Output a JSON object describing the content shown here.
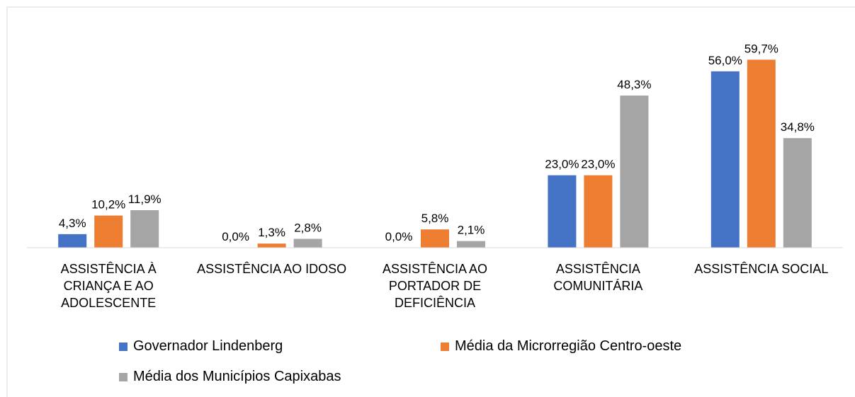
{
  "chart_data": {
    "type": "bar",
    "categories": [
      "ASSISTÊNCIA À CRIANÇA E AO ADOLESCENTE",
      "ASSISTÊNCIA AO IDOSO",
      "ASSISTÊNCIA AO PORTADOR DE DEFICIÊNCIA",
      "ASSISTÊNCIA COMUNITÁRIA",
      "ASSISTÊNCIA SOCIAL"
    ],
    "series": [
      {
        "name": "Governador Lindenberg",
        "color": "#4472c4",
        "values": [
          4.3,
          0.0,
          0.0,
          23.0,
          56.0
        ],
        "value_labels": [
          "4,3%",
          "0,0%",
          "0,0%",
          "23,0%",
          "56,0%"
        ]
      },
      {
        "name": "Média da Microrregião Centro-oeste",
        "color": "#ed7d31",
        "values": [
          10.2,
          1.3,
          5.8,
          23.0,
          59.7
        ],
        "value_labels": [
          "10,2%",
          "1,3%",
          "5,8%",
          "23,0%",
          "59,7%"
        ]
      },
      {
        "name": "Média dos Municípios Capixabas",
        "color": "#a5a5a5",
        "values": [
          11.9,
          2.8,
          2.1,
          48.3,
          34.8
        ],
        "value_labels": [
          "11,9%",
          "2,8%",
          "2,1%",
          "48,3%",
          "34,8%"
        ]
      }
    ],
    "ylim": [
      0,
      70
    ]
  }
}
